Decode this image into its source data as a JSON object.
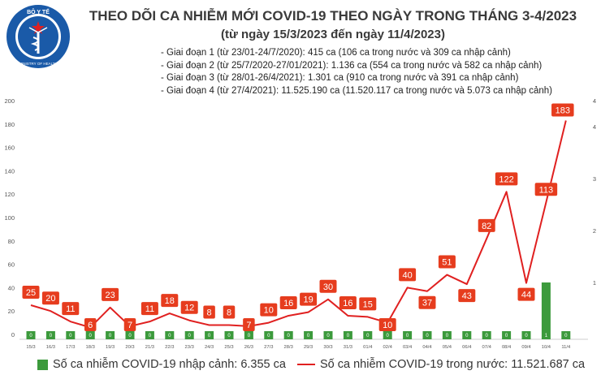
{
  "header": {
    "title": "THEO DÕI CA NHIỄM MỚI COVID-19 THEO NGÀY TRONG THÁNG 3-4/2023",
    "subtitle": "(từ ngày 15/3/2023 đến ngày 11/4/2023)",
    "logo_text_top": "BỘ Y TẾ",
    "logo_text_bottom": "MINISTRY OF HEALTH",
    "notes": [
      "- Giai đoạn 1 (từ 23/01-24/7/2020): 415 ca (106 ca trong nước và 309 ca nhập cảnh)",
      "- Giai đoạn 2 (từ 25/7/2020-27/01/2021): 1.136 ca (554 ca trong nước và 582 ca nhập cảnh)",
      "- Giai đoạn 3 (từ 28/01-26/4/2021): 1.301 ca (910 ca trong nước và 391 ca nhập cảnh)",
      "- Giai đoạn 4 (từ 27/4/2021): 11.525.190 ca (11.520.117 ca trong nước và 5.073 ca nhập cảnh)"
    ]
  },
  "colors": {
    "bar": "#3c9a3c",
    "line": "#e02020",
    "label_box": "#e63c1e",
    "title": "#3a3a3a",
    "logo": "#1a5aa8"
  },
  "chart_data": {
    "type": "bar+line",
    "categories": [
      "15/3",
      "16/3",
      "17/3",
      "18/3",
      "19/3",
      "20/3",
      "21/3",
      "22/3",
      "23/3",
      "24/3",
      "25/3",
      "26/3",
      "27/3",
      "28/3",
      "29/3",
      "30/3",
      "31/3",
      "01/4",
      "02/4",
      "03/4",
      "04/4",
      "05/4",
      "06/4",
      "07/4",
      "08/4",
      "09/4",
      "10/4",
      "11/4"
    ],
    "series": [
      {
        "name": "Số ca nhiễm COVID-19 nhập cảnh: 6.355 ca",
        "type": "bar",
        "axis": "right",
        "values": [
          0,
          0,
          0,
          0,
          0,
          0,
          0,
          0,
          0,
          0,
          0,
          0,
          0,
          0,
          0,
          0,
          0,
          0,
          0,
          0,
          0,
          0,
          0,
          0,
          0,
          0,
          1,
          0
        ]
      },
      {
        "name": "Số ca nhiễm COVID-19 trong nước: 11.521.687 ca",
        "type": "line",
        "axis": "left",
        "values": [
          25,
          20,
          11,
          6,
          23,
          7,
          11,
          18,
          12,
          8,
          8,
          7,
          10,
          16,
          19,
          30,
          16,
          15,
          10,
          40,
          37,
          51,
          43,
          82,
          122,
          44,
          113,
          183
        ]
      }
    ],
    "ylim_left": [
      0,
      200
    ],
    "yticks_left": [
      0,
      20,
      40,
      60,
      80,
      100,
      120,
      140,
      160,
      180,
      200
    ],
    "ylim_right": [
      0,
      4.5
    ],
    "yticks_right": [
      1,
      2,
      3,
      4
    ],
    "ylabel_right_top": "4",
    "legend": "bottom",
    "grid": false
  }
}
